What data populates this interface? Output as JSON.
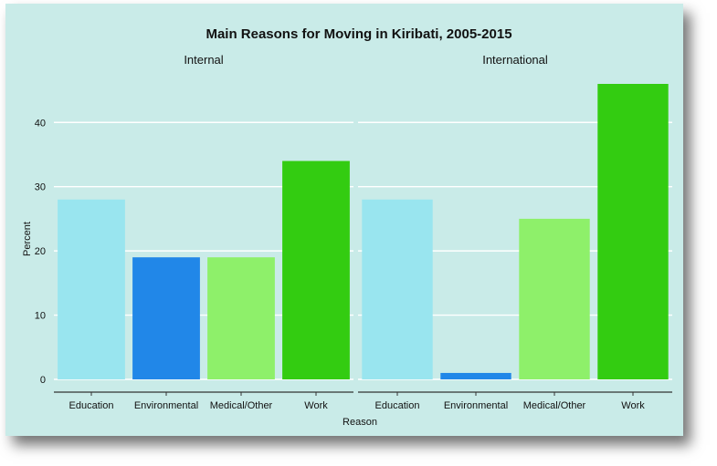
{
  "chart_data": {
    "type": "bar",
    "title": "Main Reasons for Moving in Kiribati, 2005-2015",
    "xlabel": "Reason",
    "ylabel": "Percent",
    "ylim": [
      0,
      46
    ],
    "yticks": [
      0,
      10,
      20,
      30,
      40
    ],
    "grid": true,
    "categories": [
      "Education",
      "Environmental",
      "Medical/Other",
      "Work"
    ],
    "colors": [
      "#99e5ef",
      "#2187e8",
      "#8ef06a",
      "#33cc11"
    ],
    "panels": [
      {
        "label": "Internal",
        "values": [
          28,
          19,
          19,
          34
        ]
      },
      {
        "label": "International",
        "values": [
          28,
          1,
          25,
          46
        ]
      }
    ]
  }
}
